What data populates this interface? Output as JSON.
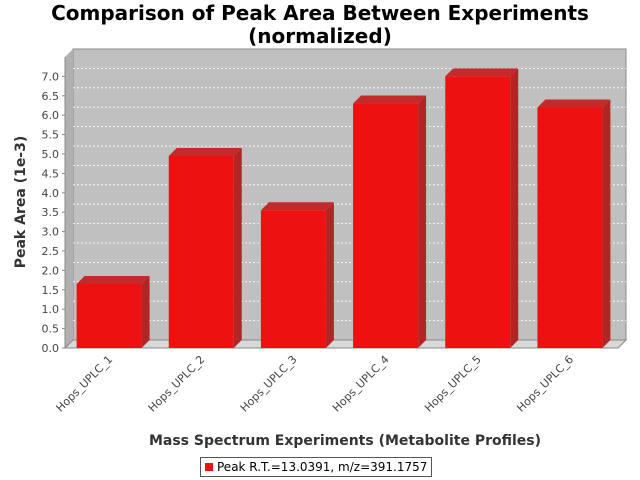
{
  "chart_data": {
    "type": "bar",
    "title_line1": "Comparison of Peak Area Between Experiments",
    "title_line2": "(normalized)",
    "xlabel": "Mass Spectrum Experiments (Metabolite Profiles)",
    "ylabel": "Peak Area (1e-3)",
    "categories": [
      "Hops_UPLC_1",
      "Hops_UPLC_2",
      "Hops_UPLC_3",
      "Hops_UPLC_4",
      "Hops_UPLC_5",
      "Hops_UPLC_6"
    ],
    "series": [
      {
        "name": "Peak R.T.=13.0391, m/z=391.1757",
        "values": [
          1.65,
          4.95,
          3.55,
          6.3,
          7.0,
          6.2
        ],
        "color": "#ee1111"
      }
    ],
    "ylim": [
      0,
      7.5
    ],
    "yticks": [
      "0.0",
      "0.5",
      "1.0",
      "1.5",
      "2.0",
      "2.5",
      "3.0",
      "3.5",
      "4.0",
      "4.5",
      "5.0",
      "5.5",
      "6.0",
      "6.5",
      "7.0"
    ],
    "grid": true,
    "legend_position": "bottom",
    "plot_background": "#c0c0c0"
  }
}
